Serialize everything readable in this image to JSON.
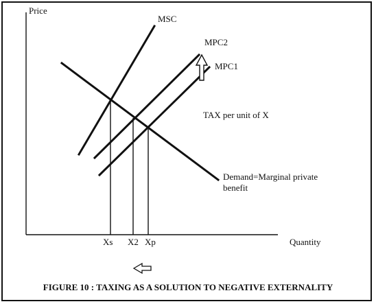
{
  "axes": {
    "y_label": "Price",
    "x_label": "Quantity"
  },
  "curves": {
    "msc": "MSC",
    "mpc2": "MPC2",
    "mpc1": "MPC1",
    "demand_line1": "Demand=Marginal private",
    "demand_line2": "benefit"
  },
  "annotation": {
    "tax": "TAX per unit of X"
  },
  "quantities": {
    "xs": "Xs",
    "x2": "X2",
    "xp": "Xp"
  },
  "caption": "FIGURE 10 : TAXING AS A SOLUTION TO NEGATIVE EXTERNALITY"
}
